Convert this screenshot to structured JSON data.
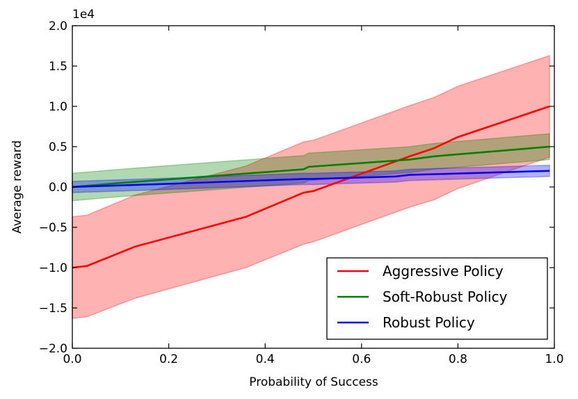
{
  "chart_data": {
    "type": "line",
    "title": "",
    "xlabel": "Probability of Success",
    "ylabel": "Average reward",
    "y_scale_label": "1e4",
    "xlim": [
      0.0,
      1.0
    ],
    "ylim": [
      -2.0,
      2.0
    ],
    "xticks": [
      "0.0",
      "0.2",
      "0.4",
      "0.6",
      "0.8",
      "1.0"
    ],
    "yticks": [
      "−2.0",
      "−1.5",
      "−1.0",
      "−0.5",
      "0.0",
      "0.5",
      "1.0",
      "1.5",
      "2.0"
    ],
    "xtick_values": [
      0.0,
      0.2,
      0.4,
      0.6,
      0.8,
      1.0
    ],
    "ytick_values": [
      -2.0,
      -1.5,
      -1.0,
      -0.5,
      0.0,
      0.5,
      1.0,
      1.5,
      2.0
    ],
    "grid": false,
    "legend_position": "bottom-right",
    "series": [
      {
        "name": "Aggressive Policy",
        "color": "#ff0000",
        "x": [
          0.0,
          0.03,
          0.13,
          0.36,
          0.48,
          0.5,
          0.7,
          0.75,
          0.8,
          0.99
        ],
        "mean": [
          -1.0,
          -0.98,
          -0.74,
          -0.37,
          -0.07,
          -0.05,
          0.38,
          0.48,
          0.62,
          1.0
        ],
        "lower": [
          -1.63,
          -1.61,
          -1.38,
          -1.0,
          -0.71,
          -0.68,
          -0.25,
          -0.16,
          -0.02,
          0.37
        ],
        "upper": [
          -0.37,
          -0.35,
          -0.1,
          0.26,
          0.56,
          0.58,
          1.01,
          1.11,
          1.25,
          1.63
        ]
      },
      {
        "name": "Soft-Robust Policy",
        "color": "#007f00",
        "x": [
          0.0,
          0.1,
          0.3,
          0.48,
          0.49,
          0.7,
          0.75,
          0.99
        ],
        "mean": [
          0.0,
          0.05,
          0.14,
          0.22,
          0.25,
          0.34,
          0.38,
          0.5
        ],
        "lower": [
          -0.17,
          -0.12,
          -0.03,
          0.05,
          0.08,
          0.18,
          0.22,
          0.34
        ],
        "upper": [
          0.17,
          0.22,
          0.31,
          0.39,
          0.42,
          0.5,
          0.54,
          0.66
        ]
      },
      {
        "name": "Robust Policy",
        "color": "#0000ff",
        "x": [
          0.0,
          0.2,
          0.48,
          0.5,
          0.67,
          0.7,
          0.99
        ],
        "mean": [
          0.0,
          0.04,
          0.1,
          0.1,
          0.13,
          0.15,
          0.2
        ],
        "lower": [
          -0.07,
          -0.03,
          0.03,
          0.03,
          0.06,
          0.08,
          0.13
        ],
        "upper": [
          0.07,
          0.11,
          0.17,
          0.17,
          0.2,
          0.22,
          0.27
        ]
      }
    ]
  }
}
